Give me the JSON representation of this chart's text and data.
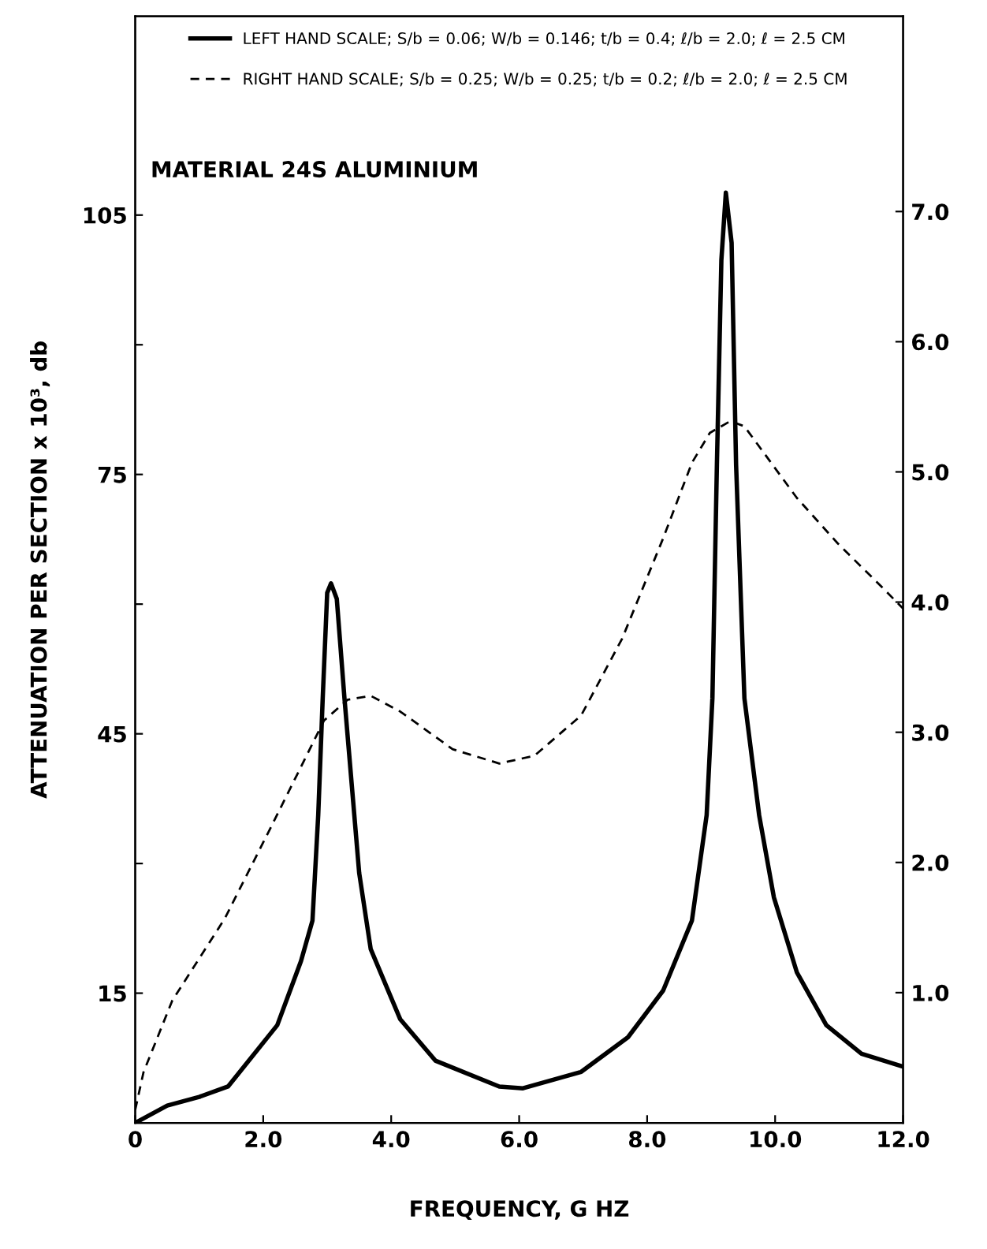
{
  "chart_data": {
    "type": "line",
    "xlabel": "FREQUENCY, G HZ",
    "ylabel": "ATTENUATION PER SECTION x 10³, db",
    "annotations": [
      "MATERIAL 24S ALUMINIUM"
    ],
    "series": [
      {
        "name": "LEFT HAND SCALE; S/b = 0.06; W/b = 0.146; t/b = 0.4; ℓ/b = 2.0; ℓ = 2.5 CM",
        "color": "#000000",
        "axis": "y",
        "line_style": "solid",
        "x": [
          0,
          0.5,
          1.0,
          1.45,
          2.22,
          2.59,
          2.77,
          2.86,
          2.93,
          3.0,
          3.06,
          3.15,
          3.27,
          3.5,
          3.68,
          4.14,
          4.69,
          5.69,
          6.06,
          6.97,
          7.7,
          8.25,
          8.7,
          8.93,
          9.02,
          9.09,
          9.16,
          9.23,
          9.32,
          9.39,
          9.52,
          9.75,
          9.98,
          10.34,
          10.8,
          11.35,
          12.0
        ],
        "values": [
          0,
          2,
          3,
          4.2,
          11.3,
          18.7,
          23.4,
          35.6,
          49.1,
          61.3,
          62.4,
          60.6,
          49.1,
          28.9,
          20.1,
          12,
          7.2,
          4.2,
          4.0,
          5.9,
          9.9,
          15.3,
          23.4,
          35.6,
          49.1,
          76.1,
          99.8,
          107.6,
          101.8,
          76.1,
          49.1,
          35.6,
          26.1,
          17.4,
          11.3,
          8,
          6.5
        ]
      },
      {
        "name": "RIGHT HAND SCALE; S/b = 0.25; W/b = 0.25; t/b = 0.2; ℓ/b = 2.0; ℓ = 2.5 CM",
        "color": "#000000",
        "axis": "y2",
        "line_style": "dashed",
        "x": [
          0,
          0.13,
          0.58,
          1.4,
          2.13,
          2.95,
          3.32,
          3.68,
          4.14,
          4.96,
          5.69,
          6.24,
          6.97,
          7.61,
          8.25,
          8.7,
          8.98,
          9.3,
          9.52,
          10.34,
          10.98,
          11.7,
          12.0
        ],
        "values": [
          0.1,
          0.39,
          0.94,
          1.57,
          2.28,
          3.09,
          3.25,
          3.28,
          3.16,
          2.87,
          2.76,
          2.82,
          3.13,
          3.72,
          4.49,
          5.07,
          5.3,
          5.39,
          5.35,
          4.8,
          4.45,
          4.1,
          3.95
        ]
      }
    ],
    "xlim": [
      0,
      12
    ],
    "xticks": [
      {
        "value": 0,
        "label": "0"
      },
      {
        "value": 2,
        "label": "2.0"
      },
      {
        "value": 4,
        "label": "4.0"
      },
      {
        "value": 6,
        "label": "6.0"
      },
      {
        "value": 8,
        "label": "8.0"
      },
      {
        "value": 10,
        "label": "10.0"
      },
      {
        "value": 12,
        "label": "12.0"
      }
    ],
    "ylim": [
      0,
      128
    ],
    "yticks": [
      15,
      {
        "value": 30,
        "label": null
      },
      45,
      {
        "value": 60,
        "label": null
      },
      75,
      {
        "value": 90,
        "label": null
      },
      105
    ],
    "y2lim": [
      0,
      8.5
    ],
    "y2ticks": [
      {
        "value": 1,
        "label": "1.0"
      },
      {
        "value": 2,
        "label": "2.0"
      },
      {
        "value": 3,
        "label": "3.0"
      },
      {
        "value": 4,
        "label": "4.0"
      },
      {
        "value": 5,
        "label": "5.0"
      },
      {
        "value": 6,
        "label": "6.0"
      },
      {
        "value": 7,
        "label": "7.0"
      }
    ],
    "grid": false,
    "legend": "top"
  }
}
